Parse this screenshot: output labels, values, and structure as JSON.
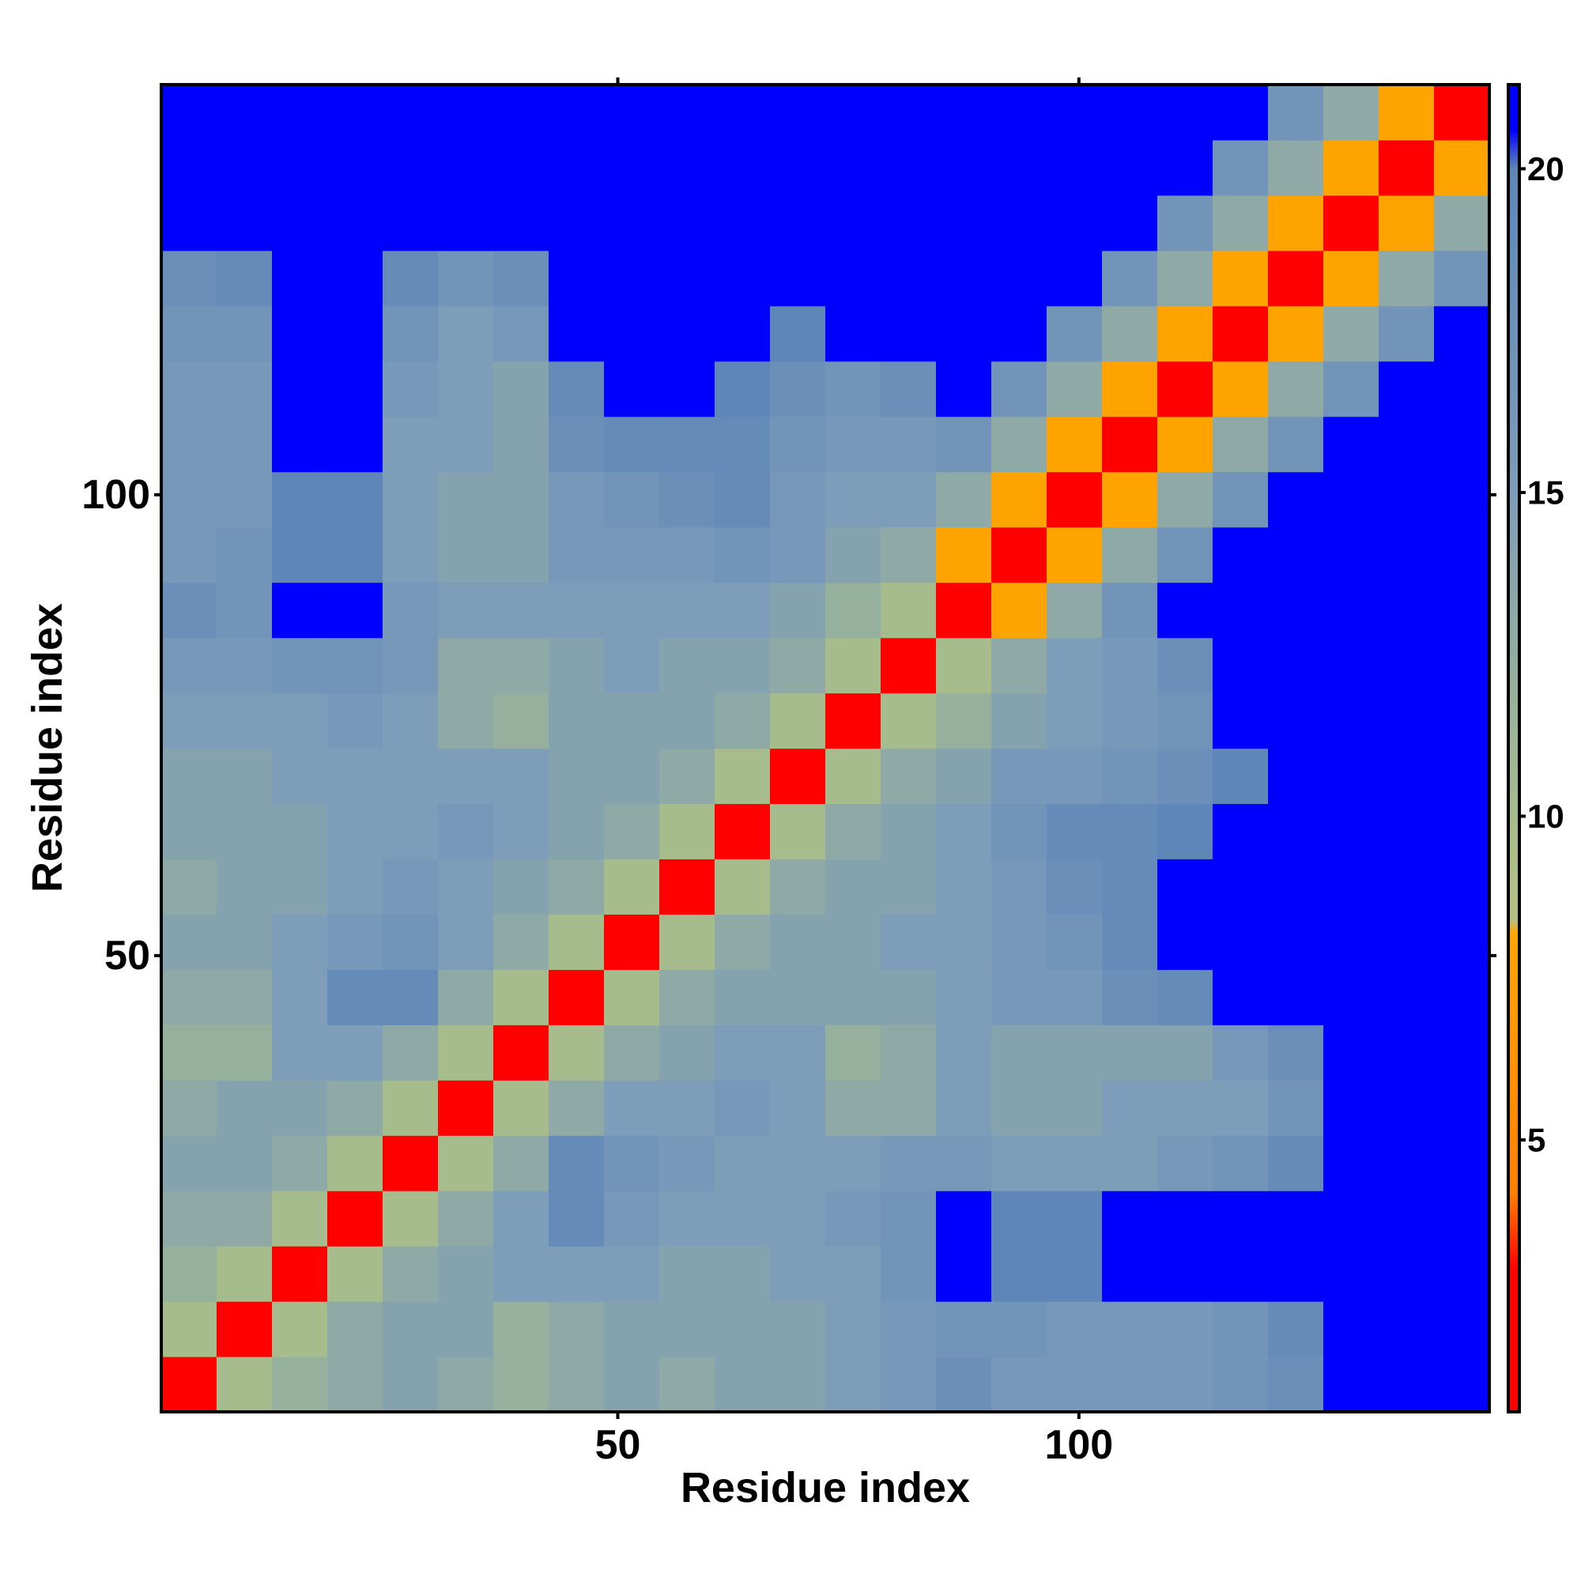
{
  "chart_data": {
    "type": "heatmap",
    "x_label": "Residue index",
    "y_label": "Residue index",
    "bins": [
      0.5,
      6.5,
      12.5,
      18.5,
      24.5,
      30.5,
      36.5,
      42.5,
      48.5,
      54.5,
      60.5,
      66.5,
      72.5,
      78.5,
      84.5,
      90.5,
      96.5,
      102.5,
      108.5,
      114.5,
      120.5,
      126.5,
      132.5,
      138.5,
      144.5
    ],
    "xlim": [
      0.5,
      144.5
    ],
    "ylim": [
      0.5,
      144.5
    ],
    "xticks": [
      50,
      100
    ],
    "yticks": [
      50,
      100
    ],
    "z": [
      [
        3,
        10,
        12,
        13,
        14,
        13,
        12,
        13,
        14,
        13,
        14,
        14,
        15,
        16,
        18,
        16,
        16,
        16,
        16,
        17,
        18,
        21,
        21,
        21
      ],
      [
        10,
        3,
        10,
        13,
        14,
        14,
        12,
        13,
        14,
        14,
        14,
        14,
        15,
        16,
        17,
        17,
        16,
        16,
        16,
        17,
        19,
        21,
        21,
        21
      ],
      [
        12,
        10,
        3,
        10,
        13,
        14,
        15,
        15,
        15,
        14,
        14,
        15,
        15,
        17,
        21,
        20,
        20,
        21,
        21,
        21,
        21,
        21,
        21,
        21
      ],
      [
        13,
        13,
        10,
        3,
        10,
        13,
        15,
        19,
        16,
        15,
        15,
        15,
        16,
        17,
        21,
        20,
        20,
        21,
        21,
        21,
        21,
        21,
        21,
        21
      ],
      [
        14,
        14,
        13,
        10,
        3,
        10,
        13,
        19,
        17,
        16,
        15,
        15,
        15,
        16,
        16,
        15,
        15,
        15,
        16,
        17,
        19,
        21,
        21,
        21
      ],
      [
        13,
        14,
        14,
        13,
        10,
        3,
        10,
        13,
        15,
        15,
        16,
        15,
        13,
        13,
        15,
        14,
        14,
        15,
        15,
        15,
        17,
        21,
        21,
        21
      ],
      [
        12,
        12,
        15,
        15,
        13,
        10,
        3,
        10,
        13,
        14,
        15,
        15,
        12,
        13,
        15,
        14,
        14,
        14,
        14,
        16,
        18,
        21,
        21,
        21
      ],
      [
        13,
        13,
        15,
        19,
        19,
        13,
        10,
        3,
        10,
        13,
        14,
        14,
        14,
        14,
        15,
        16,
        16,
        18,
        19,
        21,
        21,
        21,
        21,
        21
      ],
      [
        14,
        14,
        15,
        16,
        17,
        15,
        13,
        10,
        3,
        10,
        13,
        14,
        14,
        15,
        15,
        16,
        17,
        19,
        21,
        21,
        21,
        21,
        21,
        21
      ],
      [
        13,
        14,
        14,
        15,
        16,
        15,
        14,
        13,
        10,
        3,
        10,
        13,
        14,
        14,
        15,
        16,
        18,
        19,
        21,
        21,
        21,
        21,
        21,
        21
      ],
      [
        14,
        14,
        14,
        15,
        15,
        16,
        15,
        14,
        13,
        10,
        3,
        10,
        13,
        14,
        15,
        17,
        19,
        19,
        20,
        21,
        21,
        21,
        21,
        21
      ],
      [
        14,
        14,
        15,
        15,
        15,
        15,
        15,
        14,
        14,
        13,
        10,
        3,
        10,
        13,
        14,
        16,
        16,
        17,
        18,
        20,
        21,
        21,
        21,
        21
      ],
      [
        15,
        15,
        15,
        16,
        15,
        13,
        12,
        14,
        14,
        14,
        13,
        10,
        3,
        10,
        12,
        14,
        15,
        16,
        17,
        21,
        21,
        21,
        21,
        21
      ],
      [
        16,
        16,
        17,
        17,
        16,
        13,
        13,
        14,
        15,
        14,
        14,
        13,
        10,
        3,
        10,
        13,
        15,
        16,
        18,
        21,
        21,
        21,
        21,
        21
      ],
      [
        18,
        17,
        21,
        21,
        16,
        15,
        15,
        15,
        15,
        15,
        15,
        14,
        12,
        10,
        3,
        8,
        13,
        17,
        21,
        21,
        21,
        21,
        21,
        21
      ],
      [
        16,
        17,
        20,
        20,
        15,
        14,
        14,
        16,
        16,
        16,
        17,
        16,
        14,
        13,
        8,
        3,
        8,
        13,
        17,
        21,
        21,
        21,
        21,
        21
      ],
      [
        16,
        16,
        20,
        20,
        15,
        14,
        14,
        16,
        17,
        18,
        19,
        16,
        15,
        15,
        13,
        8,
        3,
        8,
        13,
        17,
        21,
        21,
        21,
        21
      ],
      [
        16,
        16,
        21,
        21,
        15,
        15,
        14,
        18,
        19,
        19,
        19,
        17,
        16,
        16,
        17,
        13,
        8,
        3,
        8,
        13,
        17,
        21,
        21,
        21
      ],
      [
        16,
        16,
        21,
        21,
        16,
        15,
        14,
        19,
        21,
        21,
        20,
        18,
        17,
        18,
        21,
        17,
        13,
        8,
        3,
        8,
        13,
        17,
        21,
        21
      ],
      [
        17,
        17,
        21,
        21,
        17,
        15,
        16,
        21,
        21,
        21,
        21,
        20,
        21,
        21,
        21,
        21,
        17,
        13,
        8,
        3,
        8,
        13,
        17,
        21
      ],
      [
        18,
        19,
        21,
        21,
        19,
        17,
        18,
        21,
        21,
        21,
        21,
        21,
        21,
        21,
        21,
        21,
        21,
        17,
        13,
        8,
        3,
        8,
        13,
        17
      ],
      [
        21,
        21,
        21,
        21,
        21,
        21,
        21,
        21,
        21,
        21,
        21,
        21,
        21,
        21,
        21,
        21,
        21,
        21,
        17,
        13,
        8,
        3,
        8,
        13
      ],
      [
        21,
        21,
        21,
        21,
        21,
        21,
        21,
        21,
        21,
        21,
        21,
        21,
        21,
        21,
        21,
        21,
        21,
        21,
        21,
        17,
        13,
        8,
        3,
        8
      ],
      [
        21,
        21,
        21,
        21,
        21,
        21,
        21,
        21,
        21,
        21,
        21,
        21,
        21,
        21,
        21,
        21,
        21,
        21,
        21,
        21,
        17,
        13,
        8,
        3
      ]
    ],
    "clim": [
      0.8,
      21.3
    ],
    "colorbar_ticks": [
      5,
      10,
      15,
      20
    ],
    "colorscale": [
      [
        0.8,
        "#ff0000"
      ],
      [
        3,
        "#ff0000"
      ],
      [
        4.2,
        "#ff8000"
      ],
      [
        8.2,
        "#ffa500"
      ],
      [
        8.4,
        "#b6bf86"
      ],
      [
        10,
        "#a7bc8c"
      ],
      [
        15,
        "#7d9db8"
      ],
      [
        20,
        "#5f86b8"
      ],
      [
        20.6,
        "#0000ff"
      ],
      [
        21.3,
        "#0000ff"
      ]
    ],
    "grid": false
  }
}
